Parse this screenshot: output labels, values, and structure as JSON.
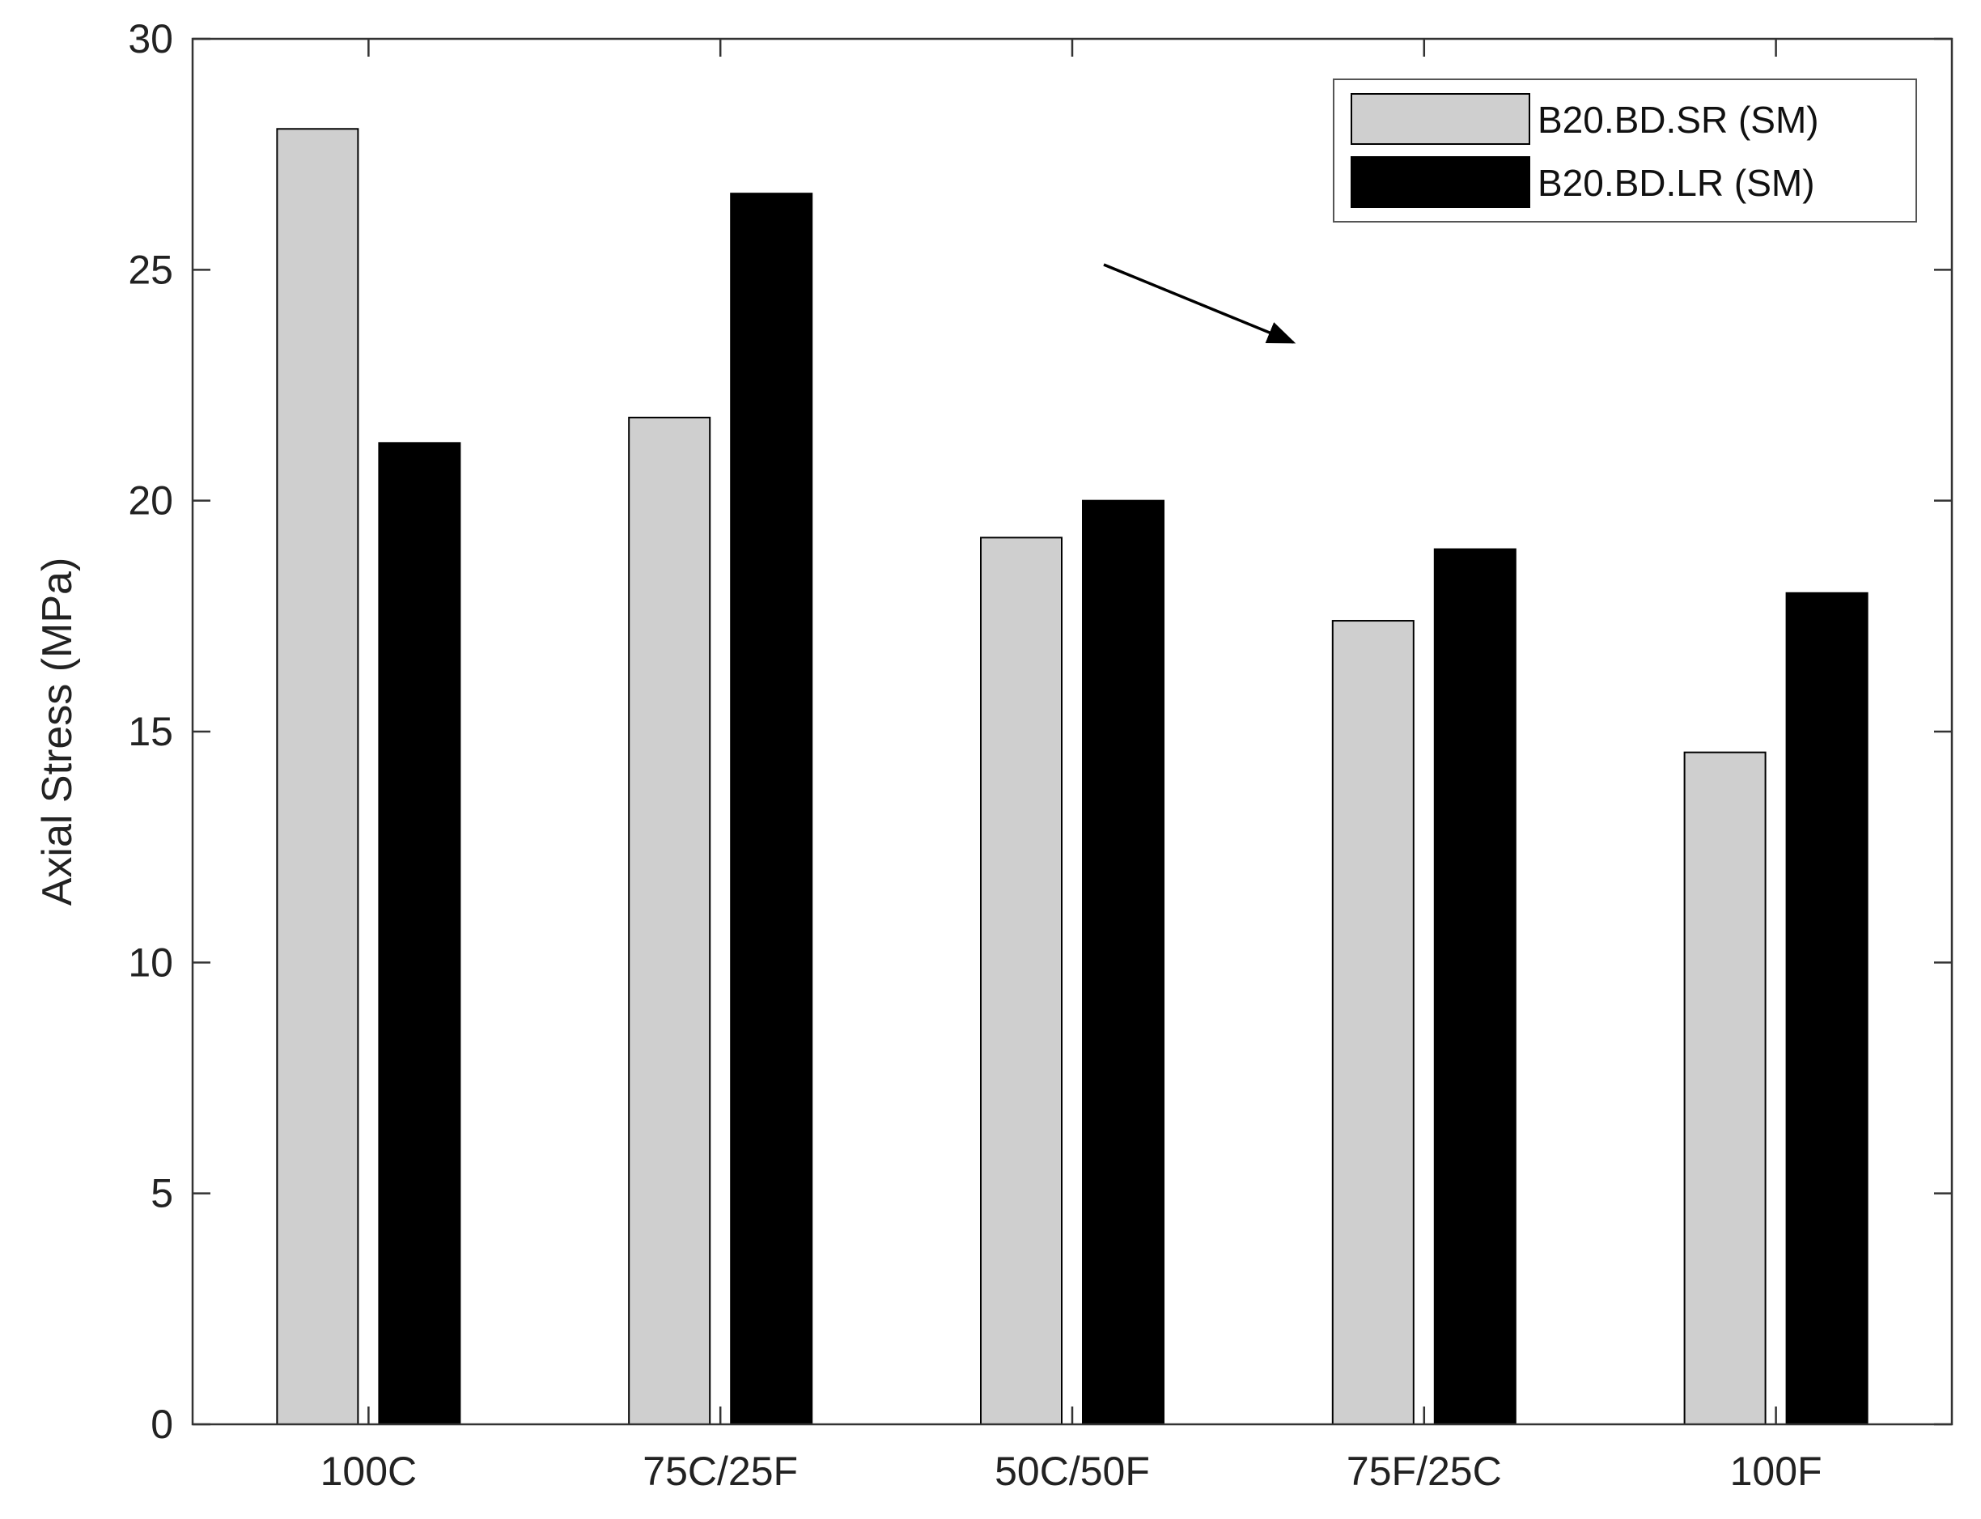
{
  "chart_data": {
    "type": "bar",
    "categories": [
      "100C",
      "75C/25F",
      "50C/50F",
      "75F/25C",
      "100F"
    ],
    "series": [
      {
        "name": "B20.BD.SR (SM)",
        "color": "#cfcfcf",
        "values": [
          28.05,
          21.8,
          19.2,
          17.4,
          14.55
        ]
      },
      {
        "name": "B20.BD.LR (SM)",
        "color": "#000000",
        "values": [
          21.25,
          26.65,
          20.0,
          18.95,
          18.0
        ]
      }
    ],
    "ylabel": "Axial Stress (MPa)",
    "ylim": [
      0,
      30
    ],
    "yticks": [
      "0",
      "5",
      "10",
      "15",
      "20",
      "25",
      "30"
    ],
    "legend_position": "top-right",
    "grid": false,
    "annotation": "arrow"
  }
}
